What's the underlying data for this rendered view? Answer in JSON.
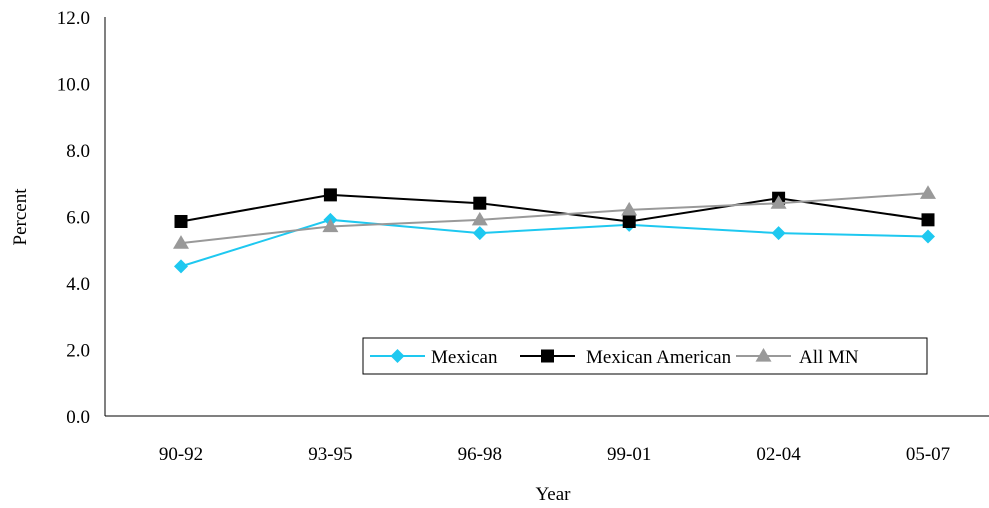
{
  "chart_data": {
    "type": "line",
    "title": "",
    "xlabel": "Year",
    "ylabel": "Percent",
    "categories": [
      "90-92",
      "93-95",
      "96-98",
      "99-01",
      "02-04",
      "05-07"
    ],
    "ylim": [
      0,
      12
    ],
    "yticks": [
      "0.0",
      "2.0",
      "4.0",
      "6.0",
      "8.0",
      "10.0",
      "12.0"
    ],
    "grid": false,
    "legend_position": "bottom-right",
    "series": [
      {
        "name": "Mexican",
        "color": "#1ec8f0",
        "marker": "diamond",
        "values": [
          4.5,
          5.9,
          5.5,
          5.75,
          5.5,
          5.4
        ]
      },
      {
        "name": "Mexican American",
        "color": "#000000",
        "marker": "square",
        "values": [
          5.85,
          6.65,
          6.4,
          5.85,
          6.55,
          5.9
        ]
      },
      {
        "name": "All MN",
        "color": "#999999",
        "marker": "triangle",
        "values": [
          5.2,
          5.7,
          5.9,
          6.2,
          6.4,
          6.7
        ]
      }
    ]
  }
}
